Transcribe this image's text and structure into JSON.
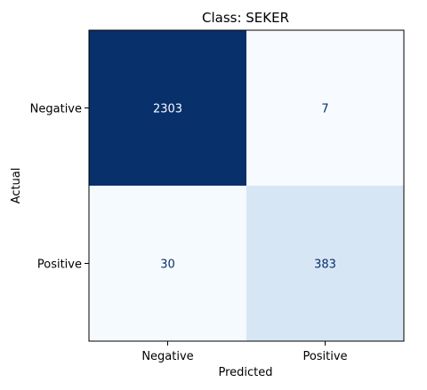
{
  "chart_data": {
    "type": "heatmap",
    "title": "Class: SEKER",
    "xlabel": "Predicted",
    "ylabel": "Actual",
    "x_categories": [
      "Negative",
      "Positive"
    ],
    "y_categories": [
      "Negative",
      "Positive"
    ],
    "values": [
      [
        2303,
        7
      ],
      [
        30,
        383
      ]
    ],
    "value_labels": [
      [
        "2303",
        "7"
      ],
      [
        "30",
        "383"
      ]
    ],
    "colormap": "Blues",
    "colors": {
      "dark": "#08306b",
      "light": "#f7fbff",
      "mid_light": "#d6e5f4",
      "text_on_dark": "#f7fbff",
      "text_on_light": "#08306b"
    },
    "grid": false
  }
}
